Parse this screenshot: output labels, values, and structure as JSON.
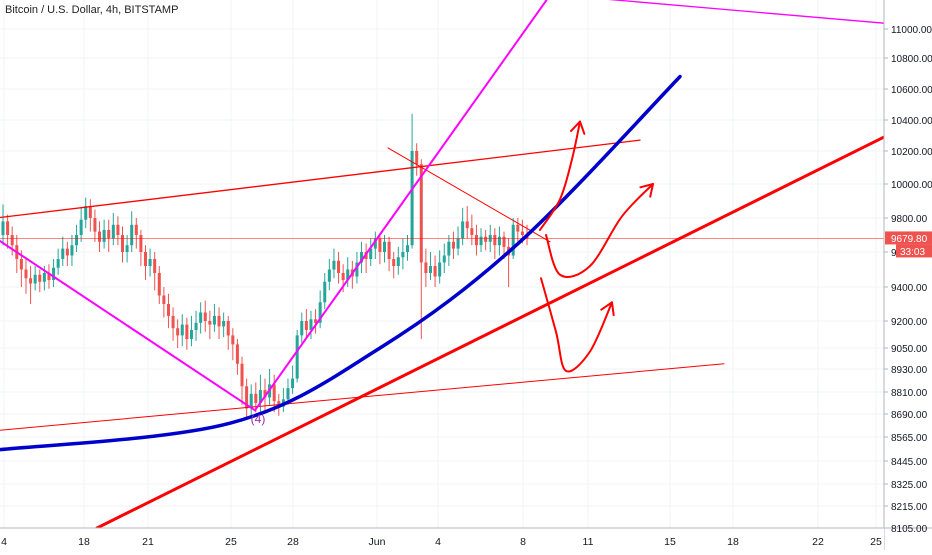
{
  "title": "Bitcoin / U.S. Dollar, 4h, BITSTAMP",
  "chart_data": {
    "type": "candlestick",
    "symbol": "Bitcoin / U.S. Dollar",
    "interval": "4h",
    "exchange": "BITSTAMP",
    "ylim": [
      8105,
      11300
    ],
    "y_ticks": [
      {
        "label": "11000.00",
        "value": 11000
      },
      {
        "label": "10800.00",
        "value": 10800
      },
      {
        "label": "10600.00",
        "value": 10600
      },
      {
        "label": "10400.00",
        "value": 10400
      },
      {
        "label": "10200.00",
        "value": 10200
      },
      {
        "label": "10000.00",
        "value": 10000
      },
      {
        "label": "9800.00",
        "value": 9800
      },
      {
        "label": "9600.00",
        "value": 9600
      },
      {
        "label": "9400.00",
        "value": 9400
      },
      {
        "label": "9200.00",
        "value": 9200
      },
      {
        "label": "9050.00",
        "value": 9050
      },
      {
        "label": "8930.00",
        "value": 8930
      },
      {
        "label": "8810.00",
        "value": 8810
      },
      {
        "label": "8690.00",
        "value": 8690
      },
      {
        "label": "8565.00",
        "value": 8565
      },
      {
        "label": "8445.00",
        "value": 8445
      },
      {
        "label": "8325.00",
        "value": 8325
      },
      {
        "label": "8215.00",
        "value": 8215
      },
      {
        "label": "8105.00",
        "value": 8105
      }
    ],
    "x_ticks": [
      "4",
      "18",
      "21",
      "25",
      "28",
      "Jun",
      "4",
      "8",
      "11",
      "15",
      "18",
      "22",
      "25"
    ],
    "last_price": "9679.80",
    "countdown": "33:03",
    "annotation_label": "(4)",
    "up_color": "#26a69a",
    "down_color": "#ef5350",
    "drawing_colors": {
      "red": "#ff0000",
      "magenta": "#ff00ff",
      "blue": "#0000cc"
    },
    "candles": [
      [
        9700,
        9780,
        9880,
        9640
      ],
      [
        9780,
        9700,
        9820,
        9620
      ],
      [
        9700,
        9640,
        9750,
        9580
      ],
      [
        9640,
        9560,
        9700,
        9480
      ],
      [
        9560,
        9500,
        9610,
        9400
      ],
      [
        9500,
        9450,
        9560,
        9360
      ],
      [
        9450,
        9420,
        9520,
        9300
      ],
      [
        9420,
        9470,
        9520,
        9380
      ],
      [
        9470,
        9430,
        9500,
        9370
      ],
      [
        9430,
        9480,
        9520,
        9380
      ],
      [
        9480,
        9440,
        9530,
        9390
      ],
      [
        9440,
        9510,
        9560,
        9400
      ],
      [
        9510,
        9560,
        9620,
        9470
      ],
      [
        9560,
        9620,
        9690,
        9520
      ],
      [
        9620,
        9580,
        9660,
        9520
      ],
      [
        9580,
        9640,
        9700,
        9520
      ],
      [
        9640,
        9700,
        9760,
        9600
      ],
      [
        9700,
        9790,
        9860,
        9660
      ],
      [
        9790,
        9870,
        9920,
        9740
      ],
      [
        9870,
        9800,
        9910,
        9720
      ],
      [
        9800,
        9720,
        9850,
        9660
      ],
      [
        9720,
        9660,
        9780,
        9600
      ],
      [
        9660,
        9730,
        9790,
        9620
      ],
      [
        9730,
        9680,
        9790,
        9600
      ],
      [
        9680,
        9760,
        9830,
        9640
      ],
      [
        9760,
        9700,
        9810,
        9640
      ],
      [
        9700,
        9600,
        9750,
        9540
      ],
      [
        9600,
        9640,
        9700,
        9540
      ],
      [
        9640,
        9760,
        9840,
        9600
      ],
      [
        9760,
        9700,
        9800,
        9620
      ],
      [
        9700,
        9600,
        9730,
        9520
      ],
      [
        9600,
        9520,
        9640,
        9440
      ],
      [
        9520,
        9560,
        9620,
        9460
      ],
      [
        9560,
        9480,
        9600,
        9380
      ],
      [
        9480,
        9350,
        9520,
        9300
      ],
      [
        9350,
        9300,
        9400,
        9220
      ],
      [
        9300,
        9230,
        9360,
        9160
      ],
      [
        9230,
        9160,
        9280,
        9090
      ],
      [
        9160,
        9120,
        9210,
        9050
      ],
      [
        9120,
        9180,
        9240,
        9060
      ],
      [
        9180,
        9100,
        9220,
        9040
      ],
      [
        9100,
        9150,
        9230,
        9060
      ],
      [
        9150,
        9190,
        9260,
        9090
      ],
      [
        9190,
        9250,
        9310,
        9130
      ],
      [
        9250,
        9200,
        9320,
        9140
      ],
      [
        9200,
        9180,
        9260,
        9100
      ],
      [
        9180,
        9230,
        9300,
        9140
      ],
      [
        9230,
        9170,
        9280,
        9100
      ],
      [
        9170,
        9200,
        9250,
        9110
      ],
      [
        9200,
        9120,
        9230,
        9040
      ],
      [
        9120,
        9070,
        9160,
        8980
      ],
      [
        9070,
        8960,
        9100,
        8900
      ],
      [
        8960,
        8840,
        9000,
        8740
      ],
      [
        8840,
        8720,
        8880,
        8660
      ],
      [
        8720,
        8800,
        8850,
        8680
      ],
      [
        8800,
        8750,
        8860,
        8700
      ],
      [
        8750,
        8820,
        8900,
        8700
      ],
      [
        8820,
        8780,
        8880,
        8710
      ],
      [
        8780,
        8850,
        8930,
        8740
      ],
      [
        8850,
        8760,
        8900,
        8700
      ],
      [
        8760,
        8730,
        8800,
        8680
      ],
      [
        8730,
        8770,
        8830,
        8700
      ],
      [
        8770,
        8830,
        8880,
        8740
      ],
      [
        8830,
        8880,
        8950,
        8800
      ],
      [
        8880,
        9120,
        9150,
        8860
      ],
      [
        9120,
        9200,
        9250,
        9080
      ],
      [
        9200,
        9150,
        9270,
        9100
      ],
      [
        9150,
        9210,
        9260,
        9100
      ],
      [
        9210,
        9190,
        9270,
        9130
      ],
      [
        9190,
        9310,
        9380,
        9160
      ],
      [
        9310,
        9430,
        9480,
        9270
      ],
      [
        9430,
        9500,
        9560,
        9380
      ],
      [
        9500,
        9550,
        9620,
        9450
      ],
      [
        9550,
        9480,
        9600,
        9420
      ],
      [
        9480,
        9440,
        9530,
        9370
      ],
      [
        9440,
        9500,
        9570,
        9400
      ],
      [
        9500,
        9460,
        9550,
        9390
      ],
      [
        9460,
        9540,
        9600,
        9420
      ],
      [
        9540,
        9600,
        9660,
        9480
      ],
      [
        9600,
        9560,
        9650,
        9480
      ],
      [
        9560,
        9620,
        9680,
        9520
      ],
      [
        9620,
        9680,
        9720,
        9560
      ],
      [
        9680,
        9600,
        9710,
        9530
      ],
      [
        9600,
        9660,
        9700,
        9540
      ],
      [
        9660,
        9560,
        9690,
        9490
      ],
      [
        9560,
        9520,
        9600,
        9450
      ],
      [
        9520,
        9570,
        9630,
        9470
      ],
      [
        9570,
        9600,
        9680,
        9500
      ],
      [
        9600,
        9640,
        9700,
        9550
      ],
      [
        9640,
        10200,
        10440,
        9620
      ],
      [
        10200,
        10120,
        10250,
        10050
      ],
      [
        10120,
        9540,
        10150,
        9100
      ],
      [
        9540,
        9480,
        9620,
        9400
      ],
      [
        9480,
        9520,
        9600,
        9440
      ],
      [
        9520,
        9460,
        9580,
        9400
      ],
      [
        9460,
        9540,
        9610,
        9420
      ],
      [
        9540,
        9580,
        9650,
        9480
      ],
      [
        9580,
        9660,
        9700,
        9520
      ],
      [
        9660,
        9620,
        9720,
        9560
      ],
      [
        9620,
        9680,
        9750,
        9580
      ],
      [
        9680,
        9780,
        9860,
        9640
      ],
      [
        9780,
        9740,
        9870,
        9680
      ],
      [
        9740,
        9700,
        9820,
        9640
      ],
      [
        9700,
        9640,
        9760,
        9580
      ],
      [
        9640,
        9690,
        9740,
        9600
      ],
      [
        9690,
        9660,
        9730,
        9610
      ],
      [
        9660,
        9700,
        9760,
        9600
      ],
      [
        9700,
        9640,
        9740,
        9560
      ],
      [
        9640,
        9690,
        9750,
        9580
      ],
      [
        9690,
        9630,
        9720,
        9560
      ],
      [
        9630,
        9580,
        9680,
        9400
      ],
      [
        9580,
        9760,
        9800,
        9560
      ],
      [
        9760,
        9720,
        9800,
        9660
      ],
      [
        9720,
        9700,
        9790,
        9650
      ],
      [
        9700,
        9680,
        9760,
        9640
      ]
    ],
    "drawings": [
      {
        "type": "line",
        "color": "red",
        "width": 1.3,
        "points": [
          [
            -4,
            9800
          ],
          [
            640,
            10270
          ]
        ]
      },
      {
        "type": "line",
        "color": "red",
        "width": 1,
        "points": [
          [
            -4,
            8600
          ],
          [
            724,
            8960
          ]
        ]
      },
      {
        "type": "line",
        "color": "red",
        "width": 3,
        "points": [
          [
            97,
            8105
          ],
          [
            884,
            10290
          ]
        ]
      },
      {
        "type": "line",
        "color": "red",
        "width": 1,
        "points": [
          [
            388,
            10220
          ],
          [
            550,
            9660
          ]
        ]
      },
      {
        "type": "line",
        "color": "magenta",
        "width": 2,
        "points": [
          [
            -4,
            9680
          ],
          [
            255,
            8710
          ]
        ]
      },
      {
        "type": "line",
        "color": "magenta",
        "width": 2,
        "points": [
          [
            255,
            8710
          ],
          [
            560,
            11330
          ]
        ]
      },
      {
        "type": "line",
        "color": "magenta",
        "width": 1.3,
        "points": [
          [
            414,
            11320
          ],
          [
            884,
            11040
          ]
        ]
      },
      {
        "type": "curve",
        "color": "blue",
        "width": 3.5,
        "points": [
          [
            -4,
            8500
          ],
          [
            230,
            8640
          ],
          [
            380,
            9050
          ],
          [
            520,
            9660
          ],
          [
            680,
            10680
          ]
        ]
      }
    ],
    "arrows": [
      {
        "color": "red",
        "points": [
          [
            540,
            9730
          ],
          [
            560,
            9910
          ],
          [
            572,
            10150
          ],
          [
            580,
            10390
          ]
        ]
      },
      {
        "color": "red",
        "points": [
          [
            546,
            9700
          ],
          [
            560,
            9470
          ],
          [
            590,
            9520
          ],
          [
            622,
            9810
          ],
          [
            653,
            10000
          ]
        ]
      },
      {
        "color": "red",
        "points": [
          [
            541,
            9450
          ],
          [
            556,
            9140
          ],
          [
            566,
            8920
          ],
          [
            590,
            9030
          ],
          [
            612,
            9310
          ]
        ]
      }
    ],
    "price_line": {
      "value": 9679.8,
      "color": "#ff0000"
    }
  }
}
